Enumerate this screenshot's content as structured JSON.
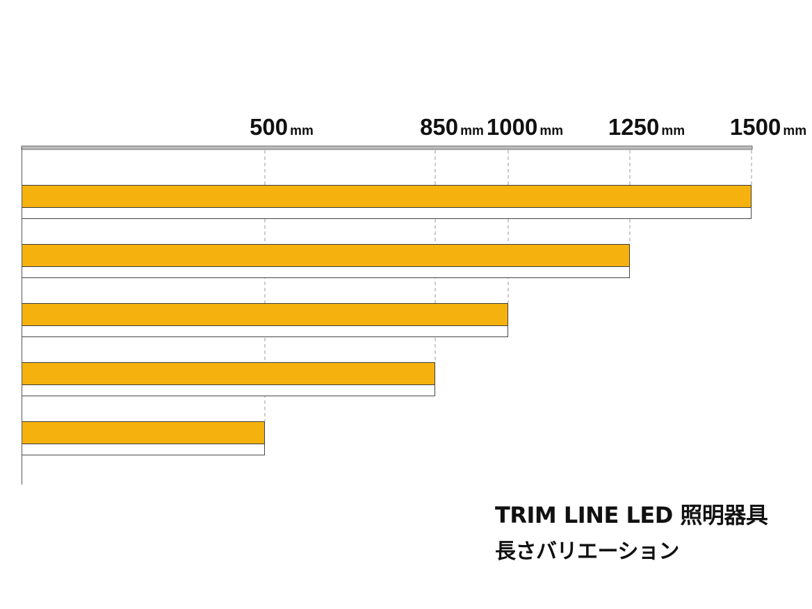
{
  "caption": {
    "line1": "TRIM LINE LED 照明器具",
    "line2": "長さバリエーション"
  },
  "chart_data": {
    "type": "bar",
    "orientation": "horizontal",
    "title": "",
    "xlabel": "",
    "ylabel": "",
    "unit": "mm",
    "xlim": [
      0,
      1500
    ],
    "ticks": [
      500,
      850,
      1000,
      1250,
      1500
    ],
    "categories": [
      "",
      "",
      "",
      "",
      ""
    ],
    "values": [
      1500,
      1250,
      1000,
      850,
      500
    ],
    "grid": "dashed vertical lines at tick values",
    "bar_color": "#F5B20E",
    "axis_color": "#999999",
    "outline_color": "#444444"
  }
}
